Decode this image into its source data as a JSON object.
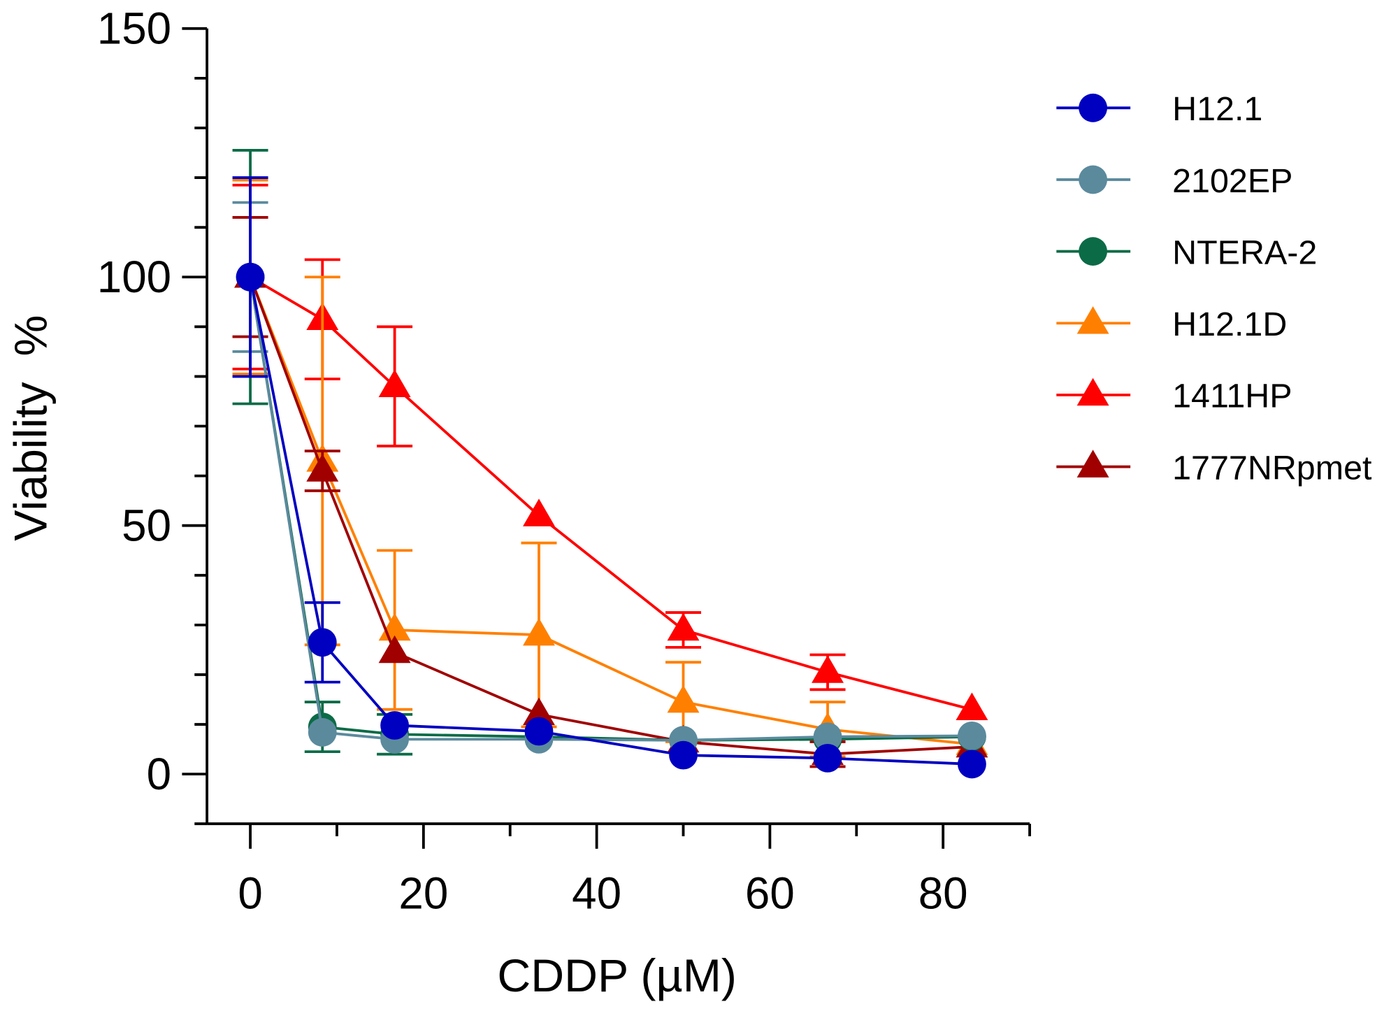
{
  "chart_data": {
    "type": "line",
    "title": "",
    "xlabel": "CDDP (µM)",
    "ylabel": "Viability  %",
    "xlim": [
      -5,
      90
    ],
    "ylim": [
      -10,
      150
    ],
    "xticks": [
      0,
      20,
      40,
      60,
      80
    ],
    "yticks": [
      0,
      50,
      100,
      150
    ],
    "grid": false,
    "legend": "right",
    "x": [
      0,
      8.33,
      16.67,
      33.33,
      50,
      66.67,
      83.33
    ],
    "series": [
      {
        "name": "H12.1",
        "marker": "circle",
        "color": "#0000c0",
        "values": [
          100,
          26.5,
          9.8,
          8.6,
          3.8,
          3.2,
          2
        ],
        "error": [
          20,
          8,
          0,
          0,
          0,
          0,
          0
        ]
      },
      {
        "name": "2102EP",
        "marker": "circle",
        "color": "#5b8a9d",
        "values": [
          100,
          8.4,
          7,
          7,
          6.8,
          7.5,
          7.7
        ],
        "error": [
          15,
          0,
          0,
          0,
          0,
          0,
          0
        ]
      },
      {
        "name": "NTERA-2",
        "marker": "circle",
        "color": "#0b6b47",
        "values": [
          100,
          9.5,
          8,
          7.5,
          6.8,
          7,
          7.5
        ],
        "error": [
          25.5,
          5,
          4,
          0,
          0,
          0,
          0
        ]
      },
      {
        "name": "H12.1D",
        "marker": "triangle",
        "color": "#ff8000",
        "values": [
          100,
          63,
          29,
          28,
          14.5,
          9,
          6
        ],
        "error": [
          19.5,
          37,
          16,
          18.5,
          8,
          5.5,
          0
        ]
      },
      {
        "name": "1411HP",
        "marker": "triangle",
        "color": "#ff0000",
        "values": [
          100,
          91.5,
          78,
          52,
          29,
          20.5,
          13
        ],
        "error": [
          18.5,
          12,
          12,
          0,
          3.5,
          3.5,
          0
        ]
      },
      {
        "name": "1777NRpmet",
        "marker": "triangle",
        "color": "#a00000",
        "values": [
          100,
          61,
          24.5,
          12,
          6.5,
          4,
          5.5
        ],
        "error": [
          12,
          4,
          0,
          0,
          0,
          2.5,
          0
        ]
      }
    ]
  }
}
